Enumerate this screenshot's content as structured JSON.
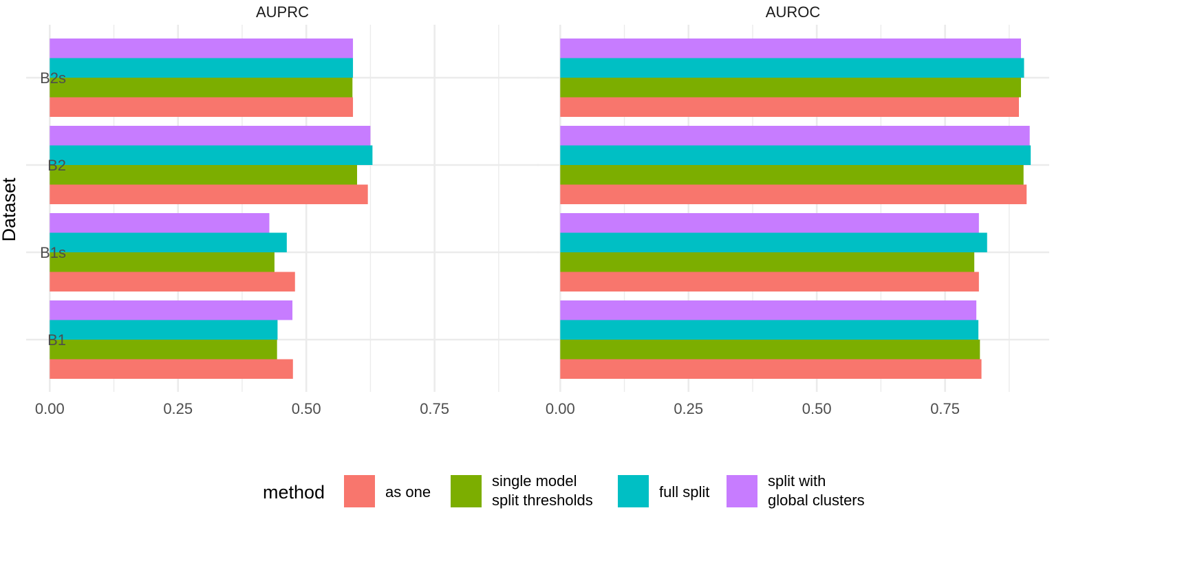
{
  "chart_data": {
    "type": "bar",
    "orientation": "horizontal",
    "y_axis_label": "Dataset",
    "categories": [
      "B1",
      "B1s",
      "B2",
      "B2s"
    ],
    "x_ticks": [
      0,
      0.25,
      0.5,
      0.75
    ],
    "x_tick_labels": [
      "0.00",
      "0.25",
      "0.50",
      "0.75"
    ],
    "xlim": [
      -0.046,
      0.953
    ],
    "grid": true,
    "legend": {
      "title": "method",
      "position": "bottom",
      "entries": [
        {
          "key": "as_one",
          "label_lines": [
            "as one"
          ],
          "color": "#F8766D"
        },
        {
          "key": "single_model",
          "label_lines": [
            "single model",
            "split thresholds"
          ],
          "color": "#7CAE00"
        },
        {
          "key": "full_split",
          "label_lines": [
            "full split"
          ],
          "color": "#00BFC4"
        },
        {
          "key": "split_global",
          "label_lines": [
            "split with",
            "global clusters"
          ],
          "color": "#C77CFF"
        }
      ]
    },
    "panels": [
      {
        "title": "AUPRC",
        "series": {
          "as_one": [
            0.474,
            0.478,
            0.62,
            0.591
          ],
          "single_model": [
            0.443,
            0.438,
            0.599,
            0.59
          ],
          "full_split": [
            0.444,
            0.462,
            0.629,
            0.591
          ],
          "split_global": [
            0.473,
            0.428,
            0.625,
            0.591
          ]
        }
      },
      {
        "title": "AUROC",
        "series": {
          "as_one": [
            0.821,
            0.816,
            0.909,
            0.894
          ],
          "single_model": [
            0.818,
            0.807,
            0.903,
            0.898
          ],
          "full_split": [
            0.815,
            0.832,
            0.917,
            0.904
          ],
          "split_global": [
            0.811,
            0.816,
            0.915,
            0.898
          ]
        }
      }
    ]
  }
}
